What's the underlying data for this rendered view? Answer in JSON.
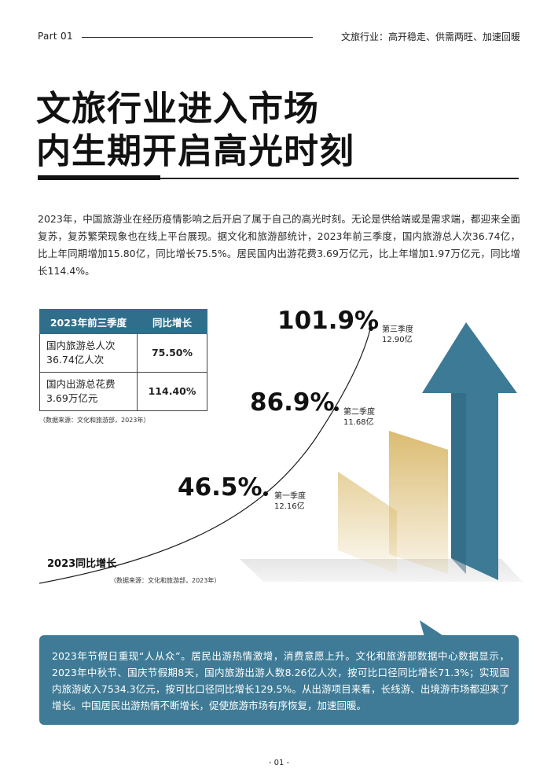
{
  "header": {
    "part": "Part 01",
    "section": "文旅行业：高开稳走、供需两旺、加速回暖"
  },
  "title": {
    "line1": "文旅行业进入市场",
    "line2": "内生期开启高光时刻"
  },
  "intro": "2023年，中国旅游业在经历疫情影响之后开启了属于自己的高光时刻。无论是供给端或是需求端，都迎来全面复苏，复苏繁荣现象也在线上平台展现。据文化和旅游部统计，2023年前三季度，国内旅游总人次36.74亿，比上年同期增加15.80亿，同比增长75.5%。居民国内出游花费3.69万亿元，比上年增加1.97万亿元，同比增长114.4%。",
  "table": {
    "headers": [
      "2023年前三季度",
      "同比增长"
    ],
    "rows": [
      {
        "line1": "国内旅游总人次",
        "line2": "36.74亿人次",
        "value": "75.50%"
      },
      {
        "line1": "国内出游总花费",
        "line2": "3.69万亿元",
        "value": "114.40%"
      }
    ],
    "source": "（数据来源：文化和旅游部，2023年）"
  },
  "growth": {
    "label": "2023同比增长",
    "source": "（数据来源：文化和旅游部，2023年）",
    "quarters": [
      {
        "pct": "46.5%",
        "name": "第一季度",
        "amount": "12.16亿"
      },
      {
        "pct": "86.9%",
        "name": "第二季度",
        "amount": "11.68亿"
      },
      {
        "pct": "101.9%",
        "name": "第三季度",
        "amount": "12.90亿"
      }
    ]
  },
  "callout": "2023年节假日重现“人从众”。居民出游热情激增，消费意愿上升。文化和旅游部数据中心数据显示，2023年中秋节、国庆节假期8天，国内旅游出游人数8.26亿人次，按可比口径同比增长71.3%；实现国内旅游收入7534.3亿元，按可比口径同比增长129.5%。从出游项目来看，长线游、出境游市场都迎来了增长。中国居民出游热情不断增长，促使旅游市场有序恢复，加速回暖。",
  "page_number": "- 01 -",
  "colors": {
    "accent": "#2f6f8c",
    "callout_bg": "#3f7b96",
    "gold": "#d9b86a"
  }
}
